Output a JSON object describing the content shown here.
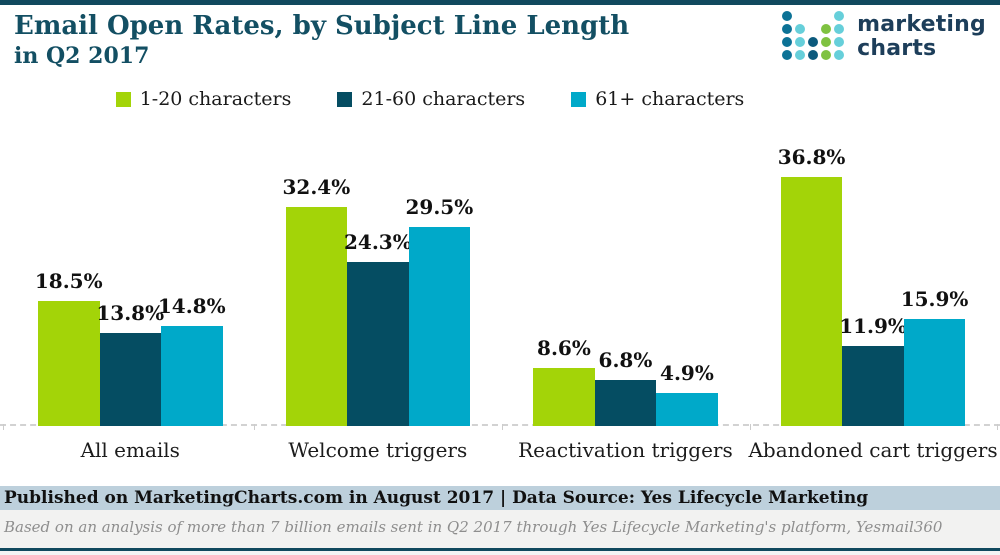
{
  "header": {
    "title_line1": "Email Open Rates, by Subject Line Length",
    "title_line2": "in Q2 2017",
    "logo": {
      "wordmark_line1": "marketing",
      "wordmark_line2": "charts",
      "palette": {
        "t": "#0c7296",
        "c": "#66cfda",
        "g": "#7fc241",
        "b": "#0c5a7d"
      },
      "grid": [
        [
          "t",
          null,
          null,
          null,
          "c"
        ],
        [
          "t",
          "c",
          null,
          "g",
          "c"
        ],
        [
          "t",
          "c",
          "b",
          "g",
          "c"
        ],
        [
          "t",
          "c",
          "b",
          "g",
          "c"
        ]
      ]
    }
  },
  "chart_data": {
    "type": "bar",
    "title": "Email Open Rates, by Subject Line Length in Q2 2017",
    "categories": [
      "All emails",
      "Welcome triggers",
      "Reactivation triggers",
      "Abandoned cart triggers"
    ],
    "series": [
      {
        "name": "1-20 characters",
        "color": "#a3d408",
        "values": [
          18.5,
          32.4,
          8.6,
          36.8
        ]
      },
      {
        "name": "21-60 characters",
        "color": "#054d62",
        "values": [
          13.8,
          24.3,
          6.8,
          11.9
        ]
      },
      {
        "name": "61+ characters",
        "color": "#00a9c9",
        "values": [
          14.8,
          29.5,
          4.9,
          15.9
        ]
      }
    ],
    "value_suffix": "%",
    "ylim": [
      0,
      40
    ],
    "grid": false,
    "legend_position": "top",
    "baseline_style": "dashed"
  },
  "footer": {
    "published_line": "Published on MarketingCharts.com in August 2017 | Data Source: Yes Lifecycle Marketing",
    "note_line": "Based on an analysis of more than 7 billion emails sent in Q2 2017 through Yes Lifecycle Marketing's platform, Yesmail360"
  },
  "colors": {
    "accent_teal": "#11495e",
    "title_text": "#134f63",
    "footer_published_bg": "#bdd0dc",
    "footer_note_bg": "#f2f2f1",
    "baseline": "#d2d2d2"
  }
}
